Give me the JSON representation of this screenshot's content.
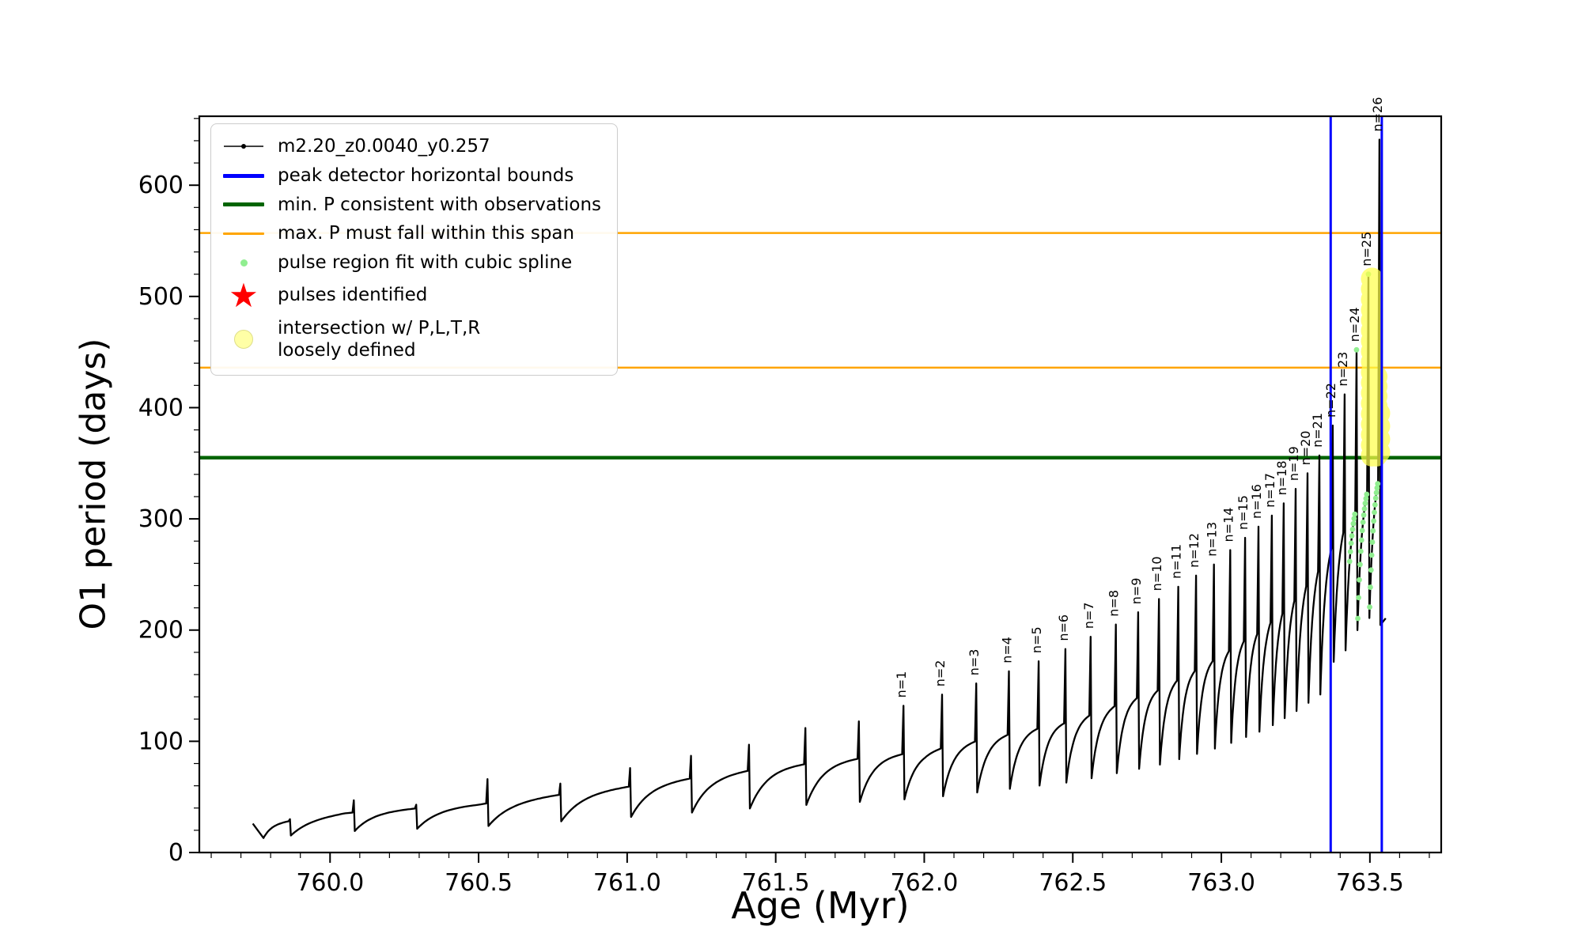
{
  "figure": {
    "xlabel": "Age (Myr)",
    "ylabel": "O1 period (days)"
  },
  "colors": {
    "curve": "#000000",
    "peak_bounds_blue": "#0000ff",
    "min_p_green": "#006400",
    "max_p_orange": "#ffa500",
    "spline_dot_green": "#90ee90",
    "pulse_star_red": "#ff0000",
    "intersection_yellow": "#ffff4d",
    "legend_yellow_fill": "#ffffa6"
  },
  "legend": {
    "items": [
      {
        "label": "m2.20_z0.0040_y0.257",
        "symbol": "line-dot-black"
      },
      {
        "label": "peak detector horizontal bounds",
        "symbol": "line-blue"
      },
      {
        "label": "min. P consistent with observations",
        "symbol": "line-green"
      },
      {
        "label": "max. P must fall within this span",
        "symbol": "line-orange"
      },
      {
        "label": "pulse region fit with cubic spline",
        "symbol": "dot-lightgreen"
      },
      {
        "label": "pulses identified",
        "symbol": "star-red"
      },
      {
        "label": "intersection w/ P,L,T,R",
        "label2": "loosely defined",
        "symbol": "circle-yellow"
      }
    ]
  },
  "chart_data": {
    "type": "line",
    "title": "",
    "xlabel": "Age (Myr)",
    "ylabel": "O1 period (days)",
    "series_name": "m2.20_z0.0040_y0.257",
    "xlim": [
      759.56,
      763.74
    ],
    "ylim": [
      0,
      662
    ],
    "xticks": [
      760.0,
      760.5,
      761.0,
      761.5,
      762.0,
      762.5,
      763.0,
      763.5
    ],
    "yticks": [
      0,
      100,
      200,
      300,
      400,
      500,
      600
    ],
    "xminor_step": 0.1,
    "yminor_step": 20,
    "grid": false,
    "legend_position": "upper left",
    "lead_in": [
      [
        759.74,
        26
      ],
      [
        759.776,
        13
      ]
    ],
    "x_end": 763.553,
    "dip_fraction": 0.53,
    "baseline": [
      [
        759.74,
        24
      ],
      [
        760.05,
        36
      ],
      [
        760.5,
        44
      ],
      [
        761.0,
        60
      ],
      [
        761.5,
        78
      ],
      [
        762.0,
        92
      ],
      [
        762.5,
        120
      ],
      [
        762.8,
        150
      ],
      [
        763.0,
        180
      ],
      [
        763.15,
        210
      ],
      [
        763.25,
        240
      ],
      [
        763.35,
        275
      ],
      [
        763.42,
        305
      ],
      [
        763.47,
        330
      ],
      [
        763.52,
        350
      ],
      [
        763.555,
        358
      ]
    ],
    "pulses": [
      {
        "x": 759.865,
        "peak": 30
      },
      {
        "x": 760.08,
        "peak": 47
      },
      {
        "x": 760.29,
        "peak": 43
      },
      {
        "x": 760.53,
        "peak": 66
      },
      {
        "x": 760.775,
        "peak": 62
      },
      {
        "x": 761.01,
        "peak": 76
      },
      {
        "x": 761.215,
        "peak": 87
      },
      {
        "x": 761.41,
        "peak": 97
      },
      {
        "x": 761.6,
        "peak": 112
      },
      {
        "x": 761.78,
        "peak": 118
      },
      {
        "n": "n=1",
        "x": 761.93,
        "peak": 132
      },
      {
        "n": "n=2",
        "x": 762.06,
        "peak": 142
      },
      {
        "n": "n=3",
        "x": 762.175,
        "peak": 152
      },
      {
        "n": "n=4",
        "x": 762.285,
        "peak": 163
      },
      {
        "n": "n=5",
        "x": 762.385,
        "peak": 172
      },
      {
        "n": "n=6",
        "x": 762.475,
        "peak": 183
      },
      {
        "n": "n=7",
        "x": 762.56,
        "peak": 194
      },
      {
        "n": "n=8",
        "x": 762.645,
        "peak": 205
      },
      {
        "n": "n=9",
        "x": 762.72,
        "peak": 216
      },
      {
        "n": "n=10",
        "x": 762.79,
        "peak": 228
      },
      {
        "n": "n=11",
        "x": 762.855,
        "peak": 239
      },
      {
        "n": "n=12",
        "x": 762.915,
        "peak": 249
      },
      {
        "n": "n=13",
        "x": 762.975,
        "peak": 259
      },
      {
        "n": "n=14",
        "x": 763.03,
        "peak": 272
      },
      {
        "n": "n=15",
        "x": 763.08,
        "peak": 283
      },
      {
        "n": "n=16",
        "x": 763.125,
        "peak": 293
      },
      {
        "n": "n=17",
        "x": 763.17,
        "peak": 303
      },
      {
        "n": "n=18",
        "x": 763.21,
        "peak": 314
      },
      {
        "n": "n=19",
        "x": 763.25,
        "peak": 327
      },
      {
        "n": "n=20",
        "x": 763.29,
        "peak": 341
      },
      {
        "n": "n=21",
        "x": 763.33,
        "peak": 357
      },
      {
        "n": "n=22",
        "x": 763.375,
        "peak": 384,
        "dip": 0.6
      },
      {
        "n": "n=23",
        "x": 763.415,
        "peak": 412,
        "dip": 0.6
      },
      {
        "n": "n=24",
        "x": 763.455,
        "peak": 452,
        "dip": 0.62
      },
      {
        "n": "n=25",
        "x": 763.495,
        "peak": 520,
        "dip": 0.62
      },
      {
        "n": "n=26",
        "x": 763.532,
        "peak": 641,
        "dip": 0.58
      }
    ],
    "vlines": {
      "x": [
        763.368,
        763.54
      ],
      "color": "#0000ff",
      "label": "peak detector horizontal bounds"
    },
    "hline_green": {
      "y": 355,
      "color": "#006400",
      "label": "min. P consistent with observations"
    },
    "hlines_orange": {
      "y": [
        436,
        557
      ],
      "color": "#ffa500",
      "label": "max. P must fall within this span"
    },
    "spline_dots": {
      "x_min": 763.43,
      "x_max": 763.548,
      "y_max": 528,
      "color": "#90ee90",
      "r": 3.4
    },
    "yellow_markers": {
      "color": "#ffff4d",
      "opacity": 0.72,
      "r": 14,
      "columns": [
        {
          "x": 763.507,
          "y0": 357,
          "y1": 516,
          "count": 18
        },
        {
          "x": 763.522,
          "y0": 357,
          "y1": 428,
          "count": 9
        },
        {
          "x": 763.531,
          "y0": 360,
          "y1": 395,
          "count": 4
        }
      ]
    }
  }
}
